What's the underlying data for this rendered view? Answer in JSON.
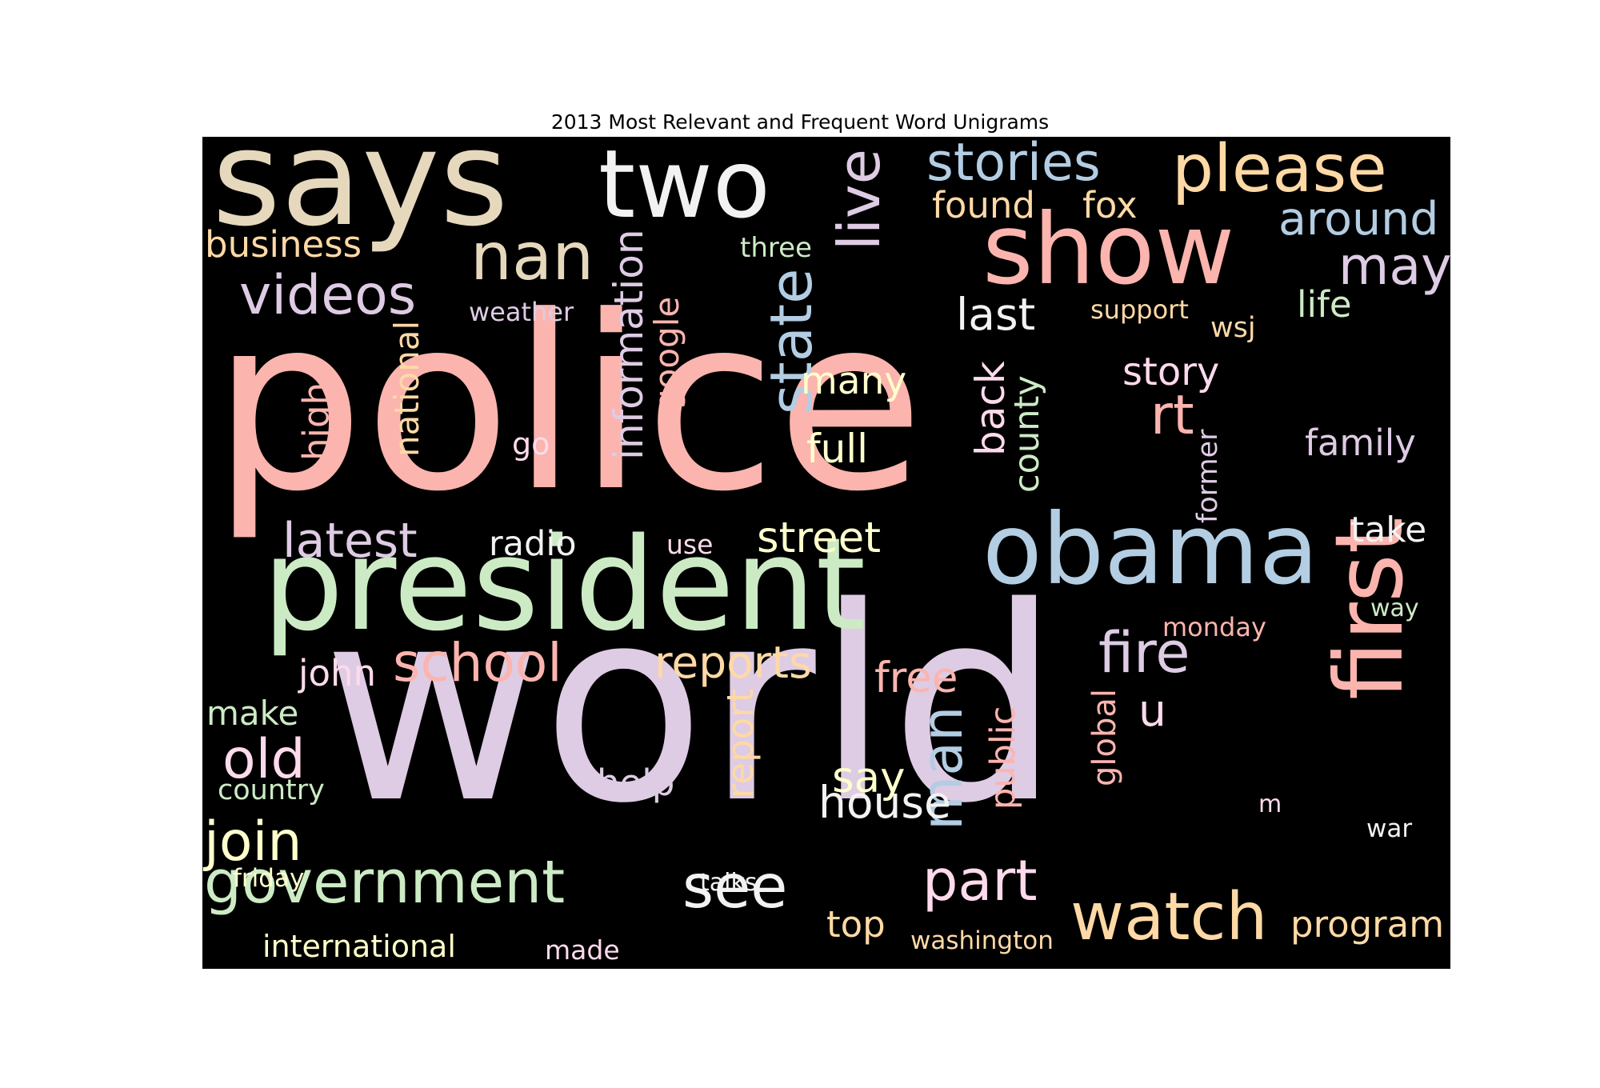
{
  "figure": {
    "title": "2013 Most Relevant and Frequent Word Unigrams"
  },
  "palette": {
    "salmon": "#fbb4ae",
    "blue": "#b3cde3",
    "green": "#ccebc5",
    "lavender": "#decbe4",
    "orange": "#fed9a6",
    "yellow": "#ffffcc",
    "tan": "#e5d8bd",
    "pink": "#fddaec",
    "gray": "#f2f2f2"
  },
  "words": [
    {
      "text": "police",
      "color": "#fbb4ae"
    },
    {
      "text": "world",
      "color": "#decbe4"
    },
    {
      "text": "president",
      "color": "#ccebc5"
    },
    {
      "text": "says",
      "color": "#e5d8bd"
    },
    {
      "text": "two",
      "color": "#f2f2f2"
    },
    {
      "text": "show",
      "color": "#fbb4ae"
    },
    {
      "text": "obama",
      "color": "#b3cde3"
    },
    {
      "text": "first",
      "color": "#fbb4ae"
    },
    {
      "text": "please",
      "color": "#fed9a6"
    },
    {
      "text": "stories",
      "color": "#b3cde3"
    },
    {
      "text": "nan",
      "color": "#e5d8bd"
    },
    {
      "text": "videos",
      "color": "#decbe4"
    },
    {
      "text": "live",
      "color": "#decbe4"
    },
    {
      "text": "state",
      "color": "#b3cde3"
    },
    {
      "text": "watch",
      "color": "#fed9a6"
    },
    {
      "text": "government",
      "color": "#ccebc5"
    },
    {
      "text": "school",
      "color": "#fbb4ae"
    },
    {
      "text": "part",
      "color": "#fddaec"
    },
    {
      "text": "see",
      "color": "#f2f2f2"
    },
    {
      "text": "man",
      "color": "#b3cde3"
    },
    {
      "text": "fire",
      "color": "#decbe4"
    },
    {
      "text": "join",
      "color": "#ffffcc"
    },
    {
      "text": "old",
      "color": "#fddaec"
    },
    {
      "text": "around",
      "color": "#b3cde3"
    },
    {
      "text": "may",
      "color": "#decbe4"
    },
    {
      "text": "information",
      "color": "#decbe4"
    },
    {
      "text": "last",
      "color": "#f2f2f2"
    },
    {
      "text": "rt",
      "color": "#fbb4ae"
    },
    {
      "text": "house",
      "color": "#f2f2f2"
    },
    {
      "text": "reports",
      "color": "#fed9a6"
    },
    {
      "text": "street",
      "color": "#ffffcc"
    },
    {
      "text": "latest",
      "color": "#decbe4"
    },
    {
      "text": "found",
      "color": "#fed9a6"
    },
    {
      "text": "fox",
      "color": "#fed9a6"
    },
    {
      "text": "business",
      "color": "#fed9a6"
    },
    {
      "text": "national",
      "color": "#fed9a6"
    },
    {
      "text": "many",
      "color": "#ffffcc"
    },
    {
      "text": "full",
      "color": "#ffffcc"
    },
    {
      "text": "back",
      "color": "#fddaec"
    },
    {
      "text": "county",
      "color": "#ccebc5"
    },
    {
      "text": "story",
      "color": "#fddaec"
    },
    {
      "text": "family",
      "color": "#decbe4"
    },
    {
      "text": "take",
      "color": "#f2f2f2"
    },
    {
      "text": "free",
      "color": "#fbb4ae"
    },
    {
      "text": "u",
      "color": "#fddaec"
    },
    {
      "text": "say",
      "color": "#ffffcc"
    },
    {
      "text": "help",
      "color": "#decbe4"
    },
    {
      "text": "report",
      "color": "#fed9a6"
    },
    {
      "text": "public",
      "color": "#fbb4ae"
    },
    {
      "text": "program",
      "color": "#fed9a6"
    },
    {
      "text": "top",
      "color": "#fed9a6"
    },
    {
      "text": "google",
      "color": "#fbb4ae"
    },
    {
      "text": "high",
      "color": "#fbb4ae"
    },
    {
      "text": "life",
      "color": "#ccebc5"
    },
    {
      "text": "john",
      "color": "#fddaec"
    },
    {
      "text": "make",
      "color": "#ccebc5"
    },
    {
      "text": "radio",
      "color": "#f2f2f2"
    },
    {
      "text": "global",
      "color": "#fbb4ae"
    },
    {
      "text": "international",
      "color": "#ffffcc"
    },
    {
      "text": "country",
      "color": "#ccebc5"
    },
    {
      "text": "three",
      "color": "#ccebc5"
    },
    {
      "text": "weather",
      "color": "#decbe4"
    },
    {
      "text": "support",
      "color": "#fed9a6"
    },
    {
      "text": "wsj",
      "color": "#fed9a6"
    },
    {
      "text": "former",
      "color": "#decbe4"
    },
    {
      "text": "go",
      "color": "#fddaec"
    },
    {
      "text": "use",
      "color": "#fddaec"
    },
    {
      "text": "monday",
      "color": "#fbb4ae"
    },
    {
      "text": "way",
      "color": "#ccebc5"
    },
    {
      "text": "friday",
      "color": "#ffffcc"
    },
    {
      "text": "talks",
      "color": "#f2f2f2"
    },
    {
      "text": "made",
      "color": "#fddaec"
    },
    {
      "text": "washington",
      "color": "#fed9a6"
    },
    {
      "text": "war",
      "color": "#f2f2f2"
    },
    {
      "text": "m",
      "color": "#fddaec"
    }
  ]
}
